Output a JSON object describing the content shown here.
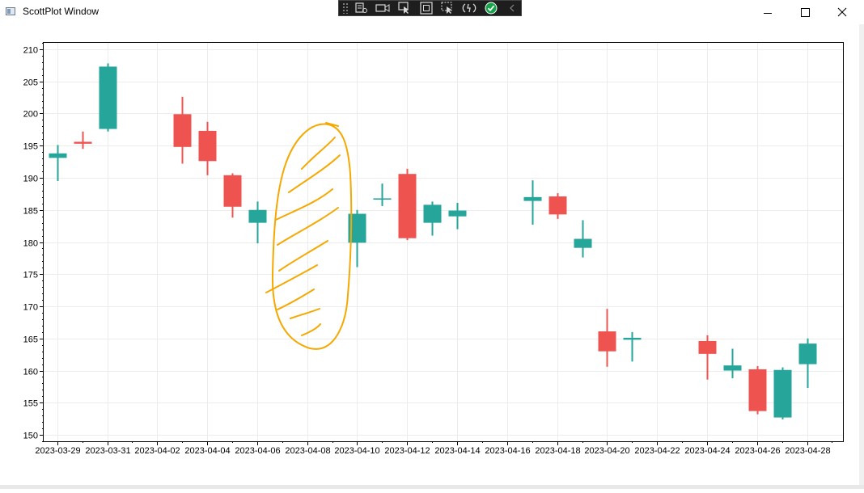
{
  "window": {
    "title": "ScottPlot Window",
    "icon": "window-app-icon",
    "controls": [
      "minimize-icon",
      "maximize-icon",
      "close-icon"
    ]
  },
  "debug_toolbar": {
    "tools": [
      "live-visual-tree-icon",
      "video-record-icon",
      "select-element-icon",
      "display-layout-icon",
      "track-focus-icon",
      "hot-reload-icon",
      "binding-check-icon",
      "collapse-chevron-icon"
    ]
  },
  "colors": {
    "up": "#26a69a",
    "down": "#ef5350",
    "annotation": "#f5a800",
    "grid": "#ececec",
    "frame": "#000000"
  },
  "chart_data": {
    "type": "candlestick",
    "title": "",
    "xlabel": "",
    "ylabel": "",
    "ylim": [
      149,
      211
    ],
    "yticks": [
      150,
      155,
      160,
      165,
      170,
      175,
      180,
      185,
      190,
      195,
      200,
      205,
      210
    ],
    "xlim": [
      "2023-03-28T11:00",
      "2023-04-29T10:30"
    ],
    "xticks": [
      "2023-03-29",
      "2023-03-31",
      "2023-04-02",
      "2023-04-04",
      "2023-04-06",
      "2023-04-08",
      "2023-04-10",
      "2023-04-12",
      "2023-04-14",
      "2023-04-16",
      "2023-04-18",
      "2023-04-20",
      "2023-04-22",
      "2023-04-24",
      "2023-04-26",
      "2023-04-28"
    ],
    "grid": true,
    "candles": [
      {
        "date": "2023-03-29",
        "open": 193.1,
        "high": 195.1,
        "low": 189.5,
        "close": 193.8
      },
      {
        "date": "2023-03-30",
        "open": 195.6,
        "high": 197.2,
        "low": 194.5,
        "close": 195.3
      },
      {
        "date": "2023-03-31",
        "open": 197.6,
        "high": 207.8,
        "low": 197.2,
        "close": 207.3
      },
      {
        "date": "2023-04-03",
        "open": 199.9,
        "high": 202.6,
        "low": 192.2,
        "close": 194.8
      },
      {
        "date": "2023-04-04",
        "open": 197.3,
        "high": 198.7,
        "low": 190.4,
        "close": 192.6
      },
      {
        "date": "2023-04-05",
        "open": 190.4,
        "high": 190.7,
        "low": 183.8,
        "close": 185.5
      },
      {
        "date": "2023-04-06",
        "open": 183.0,
        "high": 186.3,
        "low": 179.8,
        "close": 185.0
      },
      {
        "date": "2023-04-10",
        "open": 179.9,
        "high": 185.0,
        "low": 176.1,
        "close": 184.4
      },
      {
        "date": "2023-04-11",
        "open": 186.6,
        "high": 189.1,
        "low": 185.6,
        "close": 186.8
      },
      {
        "date": "2023-04-12",
        "open": 190.6,
        "high": 191.4,
        "low": 180.3,
        "close": 180.6
      },
      {
        "date": "2023-04-13",
        "open": 183.0,
        "high": 186.3,
        "low": 181.0,
        "close": 185.8
      },
      {
        "date": "2023-04-14",
        "open": 184.0,
        "high": 186.1,
        "low": 182.0,
        "close": 184.9
      },
      {
        "date": "2023-04-17",
        "open": 186.4,
        "high": 189.6,
        "low": 182.7,
        "close": 187.0
      },
      {
        "date": "2023-04-18",
        "open": 187.1,
        "high": 187.6,
        "low": 183.6,
        "close": 184.3
      },
      {
        "date": "2023-04-19",
        "open": 179.1,
        "high": 183.4,
        "low": 177.6,
        "close": 180.5
      },
      {
        "date": "2023-04-20",
        "open": 166.1,
        "high": 169.6,
        "low": 160.6,
        "close": 163.0
      },
      {
        "date": "2023-04-21",
        "open": 164.8,
        "high": 166.0,
        "low": 161.4,
        "close": 165.1
      },
      {
        "date": "2023-04-24",
        "open": 164.6,
        "high": 165.5,
        "low": 158.6,
        "close": 162.6
      },
      {
        "date": "2023-04-25",
        "open": 160.0,
        "high": 163.4,
        "low": 158.8,
        "close": 160.8
      },
      {
        "date": "2023-04-26",
        "open": 160.2,
        "high": 160.7,
        "low": 153.2,
        "close": 153.7
      },
      {
        "date": "2023-04-27",
        "open": 152.7,
        "high": 160.5,
        "low": 152.4,
        "close": 160.1
      },
      {
        "date": "2023-04-28",
        "open": 161.0,
        "high": 165.0,
        "low": 157.3,
        "close": 164.2
      }
    ],
    "annotation": {
      "type": "freehand-highlight",
      "spans": [
        "2023-04-07",
        "2023-04-09"
      ]
    }
  }
}
